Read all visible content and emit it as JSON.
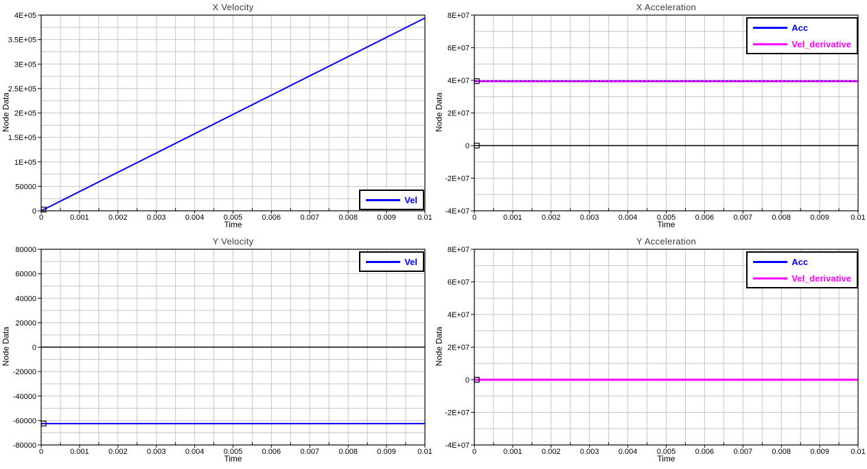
{
  "styles": {
    "background": "#ffffff",
    "grid_color": "#c4c4c4",
    "axis_color": "#000000",
    "zero_line_color": "#000000",
    "title_color": "#3a3a3a",
    "tick_label_color": "#000000",
    "marker_color": "#000000",
    "legend_border_color": "#000000",
    "legend_background": "#ffffff",
    "series_blue": "#0000ff",
    "series_magenta": "#ff00ff"
  },
  "chart_data": [
    {
      "type": "line",
      "title": "X Velocity",
      "xlabel": "Time",
      "ylabel": "Node Data",
      "xlim": [
        0,
        0.01
      ],
      "ylim": [
        0,
        400000
      ],
      "x_ticks": [
        0,
        0.001,
        0.002,
        0.003,
        0.004,
        0.005,
        0.006,
        0.007,
        0.008,
        0.009,
        0.01
      ],
      "x_tick_labels": [
        "0",
        "0.001",
        "0.002",
        "0.003",
        "0.004",
        "0.005",
        "0.006",
        "0.007",
        "0.008",
        "0.009",
        "0.01"
      ],
      "y_ticks": [
        0,
        50000,
        100000,
        150000,
        200000,
        250000,
        300000,
        350000,
        400000
      ],
      "y_tick_labels": [
        "0",
        "50000",
        "1E+05",
        "1.5E+05",
        "2E+05",
        "2.5E+05",
        "3E+05",
        "3.5E+05",
        "4E+05"
      ],
      "minor_per_major": 2,
      "grid": true,
      "zero_line": true,
      "legend": {
        "position": "bottom-right",
        "entries": [
          {
            "label": "Vel",
            "color": "#0000ff"
          }
        ]
      },
      "series": [
        {
          "name": "Vel",
          "color": "#0000ff",
          "width": 2,
          "style": "solid",
          "points": [
            [
              0,
              0
            ],
            [
              0.01,
              394000
            ]
          ],
          "marker": [
            0,
            2500
          ]
        }
      ]
    },
    {
      "type": "line",
      "title": "X Acceleration",
      "xlabel": "Time",
      "ylabel": "Node Data",
      "xlim": [
        0,
        0.01
      ],
      "ylim": [
        -40000000,
        80000000
      ],
      "x_ticks": [
        0,
        0.001,
        0.002,
        0.003,
        0.004,
        0.005,
        0.006,
        0.007,
        0.008,
        0.009,
        0.01
      ],
      "x_tick_labels": [
        "0",
        "0.001",
        "0.002",
        "0.003",
        "0.004",
        "0.005",
        "0.006",
        "0.007",
        "0.008",
        "0.009",
        "0.01"
      ],
      "y_ticks": [
        -40000000,
        -20000000,
        0,
        20000000,
        40000000,
        60000000,
        80000000
      ],
      "y_tick_labels": [
        "-4E+07",
        "-2E+07",
        "0",
        "2E+07",
        "4E+07",
        "6E+07",
        "8E+07"
      ],
      "minor_per_major": 2,
      "grid": true,
      "zero_line": true,
      "legend": {
        "position": "top-right",
        "entries": [
          {
            "label": "Acc",
            "color": "#0000ff"
          },
          {
            "label": "Vel_derivative",
            "color": "#ff00ff"
          }
        ]
      },
      "series": [
        {
          "name": "Vel_derivative",
          "color": "#ff00ff",
          "width": 3,
          "style": "solid",
          "points": [
            [
              0,
              39500000
            ],
            [
              0.01,
              39500000
            ]
          ],
          "marker": [
            0,
            39500000
          ]
        },
        {
          "name": "Acc",
          "color": "#0000ff",
          "width": 1.6,
          "style": "dashed",
          "points": [
            [
              0,
              39600000
            ],
            [
              0.01,
              39600000
            ]
          ],
          "marker": [
            0,
            0
          ]
        }
      ]
    },
    {
      "type": "line",
      "title": "Y Velocity",
      "xlabel": "Time",
      "ylabel": "Node Data",
      "xlim": [
        0,
        0.01
      ],
      "ylim": [
        -80000,
        80000
      ],
      "x_ticks": [
        0,
        0.001,
        0.002,
        0.003,
        0.004,
        0.005,
        0.006,
        0.007,
        0.008,
        0.009,
        0.01
      ],
      "x_tick_labels": [
        "0",
        "0.001",
        "0.002",
        "0.003",
        "0.004",
        "0.005",
        "0.006",
        "0.007",
        "0.008",
        "0.009",
        "0.01"
      ],
      "y_ticks": [
        -80000,
        -60000,
        -40000,
        -20000,
        0,
        20000,
        40000,
        60000,
        80000
      ],
      "y_tick_labels": [
        "-80000",
        "-60000",
        "-40000",
        "-20000",
        "0",
        "20000",
        "40000",
        "60000",
        "80000"
      ],
      "minor_per_major": 2,
      "grid": true,
      "zero_line": true,
      "legend": {
        "position": "top-right",
        "entries": [
          {
            "label": "Vel",
            "color": "#0000ff"
          }
        ]
      },
      "series": [
        {
          "name": "Vel",
          "color": "#0000ff",
          "width": 2,
          "style": "solid",
          "points": [
            [
              0,
              -62500
            ],
            [
              0.01,
              -62500
            ]
          ],
          "marker": [
            0,
            -62500
          ]
        }
      ]
    },
    {
      "type": "line",
      "title": "Y Acceleration",
      "xlabel": "Time",
      "ylabel": "Node Data",
      "xlim": [
        0,
        0.01
      ],
      "ylim": [
        -40000000,
        80000000
      ],
      "x_ticks": [
        0,
        0.001,
        0.002,
        0.003,
        0.004,
        0.005,
        0.006,
        0.007,
        0.008,
        0.009,
        0.01
      ],
      "x_tick_labels": [
        "0",
        "0.001",
        "0.002",
        "0.003",
        "0.004",
        "0.005",
        "0.006",
        "0.007",
        "0.008",
        "0.009",
        "0.01"
      ],
      "y_ticks": [
        -40000000,
        -20000000,
        0,
        20000000,
        40000000,
        60000000,
        80000000
      ],
      "y_tick_labels": [
        "-4E+07",
        "-2E+07",
        "0",
        "2E+07",
        "4E+07",
        "6E+07",
        "8E+07"
      ],
      "minor_per_major": 2,
      "grid": true,
      "zero_line": true,
      "legend": {
        "position": "top-right",
        "entries": [
          {
            "label": "Acc",
            "color": "#0000ff"
          },
          {
            "label": "Vel_derivative",
            "color": "#ff00ff"
          }
        ]
      },
      "series": [
        {
          "name": "Acc",
          "color": "#0000ff",
          "width": 2,
          "style": "solid",
          "points": [
            [
              0,
              0
            ],
            [
              0.01,
              0
            ]
          ],
          "marker": [
            0,
            0
          ]
        },
        {
          "name": "Vel_derivative",
          "color": "#ff00ff",
          "width": 3,
          "style": "solid",
          "points": [
            [
              0,
              0
            ],
            [
              0.01,
              0
            ]
          ],
          "marker": [
            0,
            0
          ]
        }
      ]
    }
  ]
}
